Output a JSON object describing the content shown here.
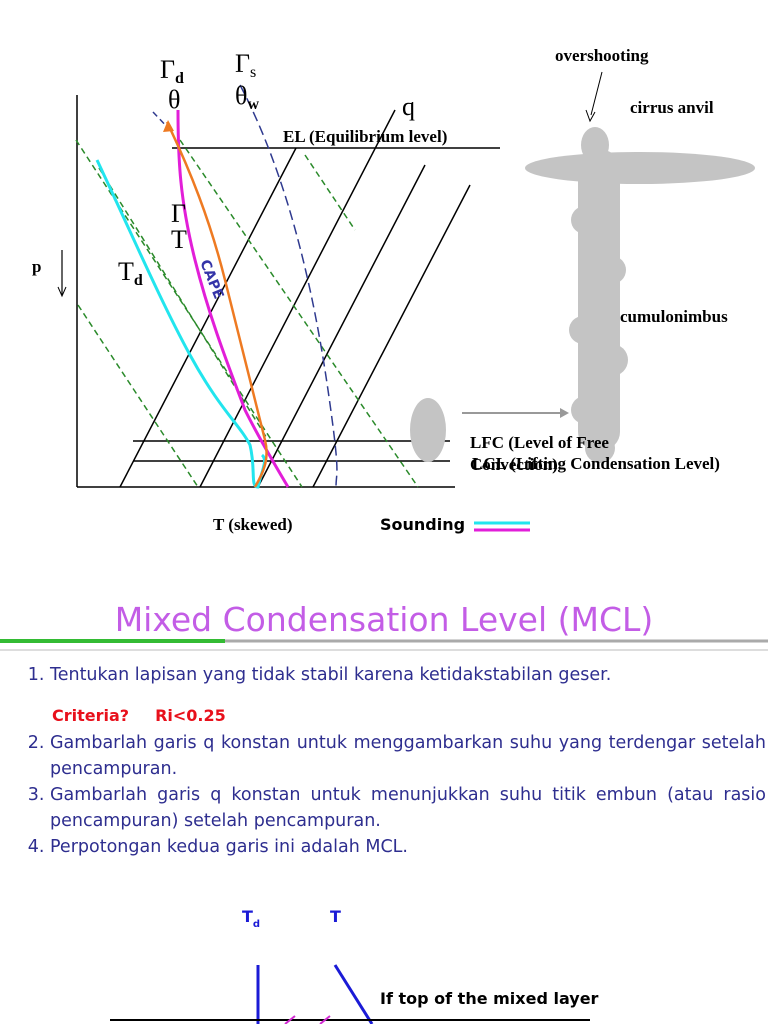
{
  "skewt": {
    "dry_adiabat": {
      "symbol": "Γ",
      "sub": "d",
      "theta": "θ"
    },
    "moist_adiabat": {
      "symbol": "Γ",
      "sub": "s",
      "theta": "θ",
      "theta_sub": "w"
    },
    "mixing_ratio": "q",
    "el": "EL (Equilibrium level)",
    "gamma_t": {
      "symbol": "Γ",
      "t": "T"
    },
    "pressure": "p",
    "dewpoint": {
      "symbol": "T",
      "sub": "d"
    },
    "cape": "CAPE",
    "lfc": [
      "LFC (Level of Free",
      "Convection)"
    ],
    "lcl": "LCL (Lifting Condensation Level)",
    "x_axis": "T (skewed)",
    "legend": "Sounding"
  },
  "cloud": {
    "overshooting": "overshooting",
    "anvil": "cirrus anvil",
    "tower": "cumulonimbus"
  },
  "title": "Mixed Condensation Level (MCL)",
  "steps": [
    "Tentukan lapisan yang tidak stabil karena ketidakstabilan geser.",
    "Gambarlah garis q konstan untuk menggambarkan suhu yang terdengar setelah pencampuran.",
    "Gambarlah garis q konstan untuk menunjukkan suhu titik embun (atau rasio pencampuran) setelah pencampuran.",
    "Perpotongan kedua garis ini adalah MCL."
  ],
  "criteria": {
    "label": "Criteria?",
    "value": "Ri<0.25"
  },
  "bottom": {
    "dewpoint": {
      "symbol": "T",
      "sub": "d"
    },
    "temperature": "T",
    "label": "If top of the mixed layer"
  }
}
